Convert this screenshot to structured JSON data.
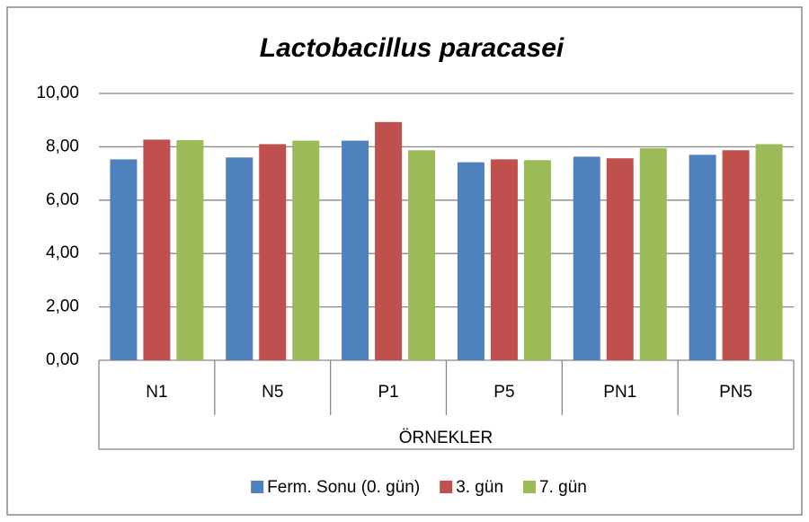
{
  "chart_data": {
    "type": "bar",
    "title": "Lactobacillus  paracasei",
    "x_label": "ÖRNEKLER",
    "categories": [
      "N1",
      "N5",
      "P1",
      "P5",
      "PN1",
      "PN5"
    ],
    "series": [
      {
        "name": "Ferm. Sonu (0. gün)",
        "color": "#4f81bd",
        "values": [
          7.53,
          7.6,
          8.23,
          7.42,
          7.63,
          7.7
        ]
      },
      {
        "name": "3. gün",
        "color": "#c0504d",
        "values": [
          8.27,
          8.1,
          8.93,
          7.53,
          7.57,
          7.87
        ]
      },
      {
        "name": "7. gün",
        "color": "#9bbb59",
        "values": [
          8.25,
          8.23,
          7.87,
          7.5,
          7.95,
          8.1
        ]
      }
    ],
    "ylim": [
      0,
      10
    ],
    "yticks": [
      {
        "value": 0,
        "label": "0,00"
      },
      {
        "value": 2,
        "label": "2,00"
      },
      {
        "value": 4,
        "label": "4,00"
      },
      {
        "value": 6,
        "label": "6,00"
      },
      {
        "value": 8,
        "label": "8,00"
      },
      {
        "value": 10,
        "label": "10,00"
      }
    ],
    "grid": true,
    "legend": "bottom"
  }
}
